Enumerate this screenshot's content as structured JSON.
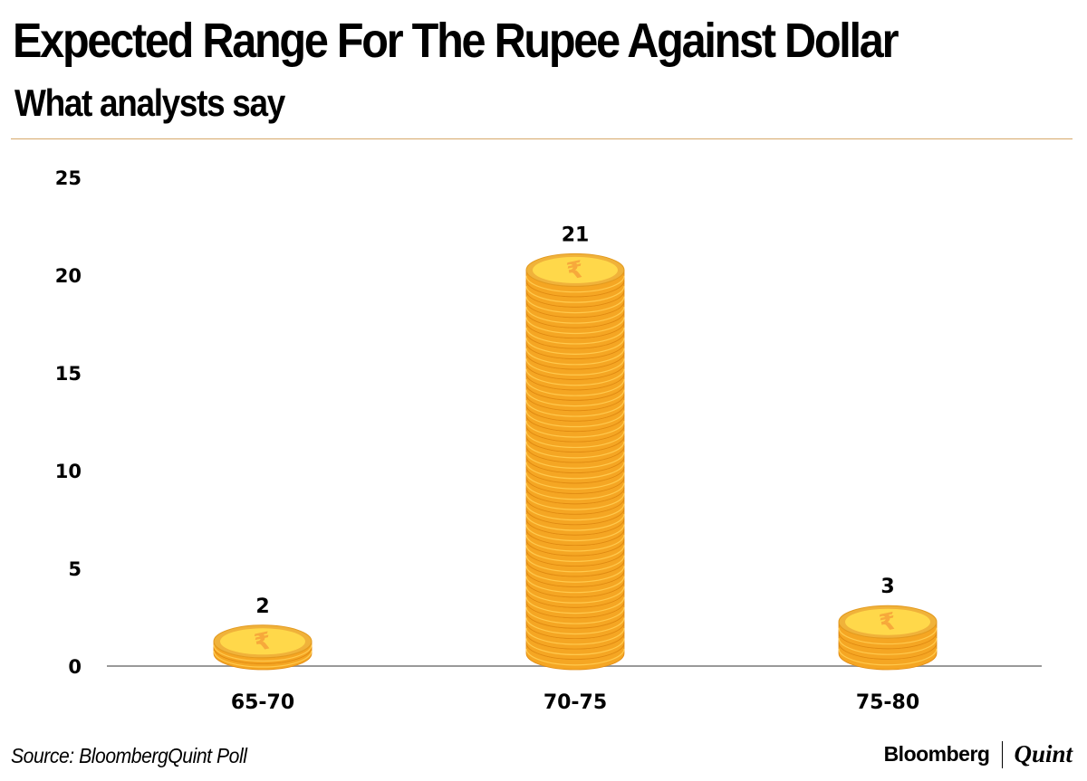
{
  "header": {
    "title": "Expected Range For The Rupee Against Dollar",
    "subtitle": "What analysts say"
  },
  "footer": {
    "source": "Source: BloombergQuint Poll",
    "brand_primary": "Bloomberg",
    "brand_secondary": "Quint"
  },
  "colors": {
    "accent_rule": "#d6a86a",
    "coin_face": "#ffd84a",
    "coin_edge": "#f5a623",
    "coin_rim": "#f0b23a",
    "rupee_symbol": "#f7a93b",
    "axis_line": "#999999"
  },
  "icons": {
    "bar_mark": "rupee-coin-stack-icon"
  },
  "chart_data": {
    "type": "bar",
    "categories": [
      "65-70",
      "70-75",
      "75-80"
    ],
    "values": [
      2,
      21,
      3
    ],
    "data_labels": [
      "2",
      "21",
      "3"
    ],
    "yticks": [
      "0",
      "5",
      "10",
      "15",
      "20",
      "25"
    ],
    "ylim": [
      0,
      25
    ],
    "title": "Expected Range For The Rupee Against Dollar",
    "subtitle": "What analysts say",
    "xlabel": "",
    "ylabel": "",
    "grid": false,
    "legend": "none"
  }
}
